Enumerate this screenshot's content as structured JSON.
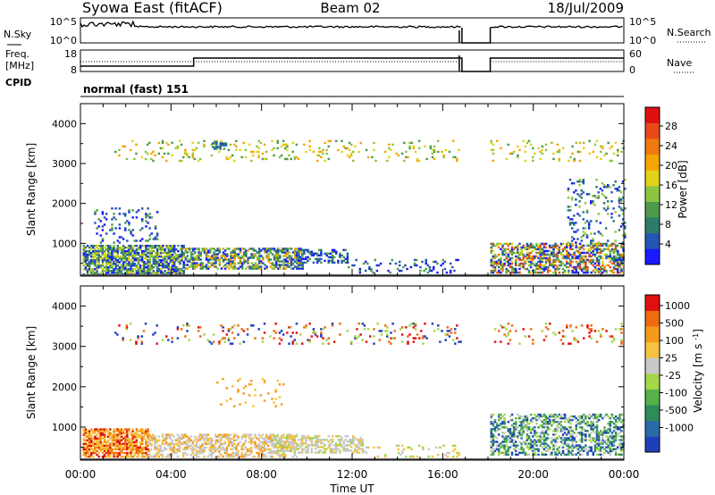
{
  "header": {
    "station": "Syowa East (fitACF)",
    "beam": "Beam 02",
    "date": "18/Jul/2009"
  },
  "noise_panel": {
    "left_label": "N.Sky",
    "right_label": "N.Search",
    "left_ticks": [
      "10^5",
      "10^0"
    ],
    "right_ticks": [
      "10^5",
      "10^0"
    ]
  },
  "freq_panel": {
    "left_label_1": "Freq.",
    "left_label_2": "[MHz]",
    "right_label": "Nave",
    "left_ticks": [
      "18",
      "8"
    ],
    "right_ticks": [
      "60",
      "0"
    ]
  },
  "cpid": {
    "label": "CPID",
    "program": "normal (fast) 151"
  },
  "x_axis": {
    "label": "Time UT",
    "ticks": [
      "00:00",
      "04:00",
      "08:00",
      "12:00",
      "16:00",
      "20:00",
      "00:00"
    ]
  },
  "chart_data": [
    {
      "type": "heatmap",
      "name": "power",
      "ylabel": "Slant Range [km]",
      "yticks": [
        "1000",
        "2000",
        "3000",
        "4000"
      ],
      "ylim": [
        180,
        4500
      ],
      "xlim_hours": [
        0,
        24
      ],
      "colorbar": {
        "label": "Power [dB]",
        "ticks": [
          "4",
          "8",
          "12",
          "16",
          "20",
          "24",
          "28"
        ],
        "colors": [
          "#1a1aff",
          "#2456b3",
          "#2e7c6a",
          "#4f9a4a",
          "#8cc63f",
          "#e3d21a",
          "#f5a500",
          "#f07a10",
          "#e84a1c",
          "#e01010"
        ]
      },
      "data_gap_hours": [
        16.85,
        18.1
      ],
      "clusters": [
        {
          "t": [
            0.1,
            4.6
          ],
          "r": [
            200,
            950
          ],
          "density": 0.75,
          "levels": [
            0,
            1,
            2,
            3,
            4,
            5
          ]
        },
        {
          "t": [
            4.6,
            9.8
          ],
          "r": [
            350,
            850
          ],
          "density": 0.6,
          "levels": [
            0,
            1,
            2,
            3,
            4,
            6
          ]
        },
        {
          "t": [
            9.5,
            11.8
          ],
          "r": [
            500,
            850
          ],
          "density": 0.45,
          "levels": [
            0,
            1,
            2,
            3
          ]
        },
        {
          "t": [
            11.8,
            16.8
          ],
          "r": [
            250,
            600
          ],
          "density": 0.15,
          "levels": [
            0,
            1,
            3
          ]
        },
        {
          "t": [
            0.6,
            3.4
          ],
          "r": [
            1000,
            1900
          ],
          "density": 0.12,
          "levels": [
            0,
            1,
            3
          ]
        },
        {
          "t": [
            18.1,
            24
          ],
          "r": [
            250,
            1000
          ],
          "density": 0.55,
          "levels": [
            0,
            1,
            2,
            3,
            4,
            5,
            7,
            8
          ]
        },
        {
          "t": [
            21.5,
            24
          ],
          "r": [
            1000,
            2600
          ],
          "density": 0.16,
          "levels": [
            0,
            1,
            2,
            4
          ]
        },
        {
          "t": [
            1.5,
            16.8
          ],
          "r": [
            3050,
            3550
          ],
          "density": 0.1,
          "levels": [
            3,
            4,
            5,
            6
          ]
        },
        {
          "t": [
            18.1,
            24
          ],
          "r": [
            3050,
            3550
          ],
          "density": 0.1,
          "levels": [
            3,
            4,
            5,
            6
          ]
        },
        {
          "t": [
            5.8,
            6.4
          ],
          "r": [
            3350,
            3550
          ],
          "density": 0.6,
          "levels": [
            1,
            2,
            3
          ]
        }
      ]
    },
    {
      "type": "heatmap",
      "name": "velocity",
      "ylabel": "Slant Range [km]",
      "yticks": [
        "1000",
        "2000",
        "3000",
        "4000"
      ],
      "ylim": [
        180,
        4500
      ],
      "xlim_hours": [
        0,
        24
      ],
      "colorbar": {
        "label": "Velocity [m s^-1]",
        "ticks": [
          "1000",
          "500",
          "100",
          "25",
          "-25",
          "-100",
          "-500",
          "-1000"
        ],
        "colors": [
          "#1f3fb8",
          "#2a6aa8",
          "#2e8c5a",
          "#58b04a",
          "#a6d64a",
          "#c8c8c8",
          "#f5c242",
          "#f59a1a",
          "#f06a10",
          "#e01010"
        ]
      },
      "data_gap_hours": [
        16.85,
        18.1
      ],
      "clusters": [
        {
          "t": [
            0.1,
            3.0
          ],
          "r": [
            250,
            950
          ],
          "density": 0.75,
          "levels": [
            6,
            7,
            8,
            9,
            6
          ]
        },
        {
          "t": [
            3.0,
            9.5
          ],
          "r": [
            250,
            800
          ],
          "density": 0.55,
          "levels": [
            5,
            6,
            7,
            5
          ]
        },
        {
          "t": [
            8.5,
            12.5
          ],
          "r": [
            350,
            800
          ],
          "density": 0.5,
          "levels": [
            5,
            5,
            6,
            4
          ]
        },
        {
          "t": [
            12.5,
            16.8
          ],
          "r": [
            250,
            550
          ],
          "density": 0.15,
          "levels": [
            4,
            5,
            6
          ]
        },
        {
          "t": [
            18.1,
            24
          ],
          "r": [
            300,
            1300
          ],
          "density": 0.45,
          "levels": [
            1,
            2,
            3,
            4,
            0,
            5
          ]
        },
        {
          "t": [
            1.5,
            16.8
          ],
          "r": [
            3050,
            3550
          ],
          "density": 0.1,
          "levels": [
            9,
            8,
            4,
            0
          ]
        },
        {
          "t": [
            18.1,
            24
          ],
          "r": [
            3050,
            3550
          ],
          "density": 0.1,
          "levels": [
            9,
            8,
            4
          ]
        },
        {
          "t": [
            6.0,
            9.0
          ],
          "r": [
            1500,
            2200
          ],
          "density": 0.08,
          "levels": [
            6,
            7
          ]
        }
      ]
    }
  ]
}
